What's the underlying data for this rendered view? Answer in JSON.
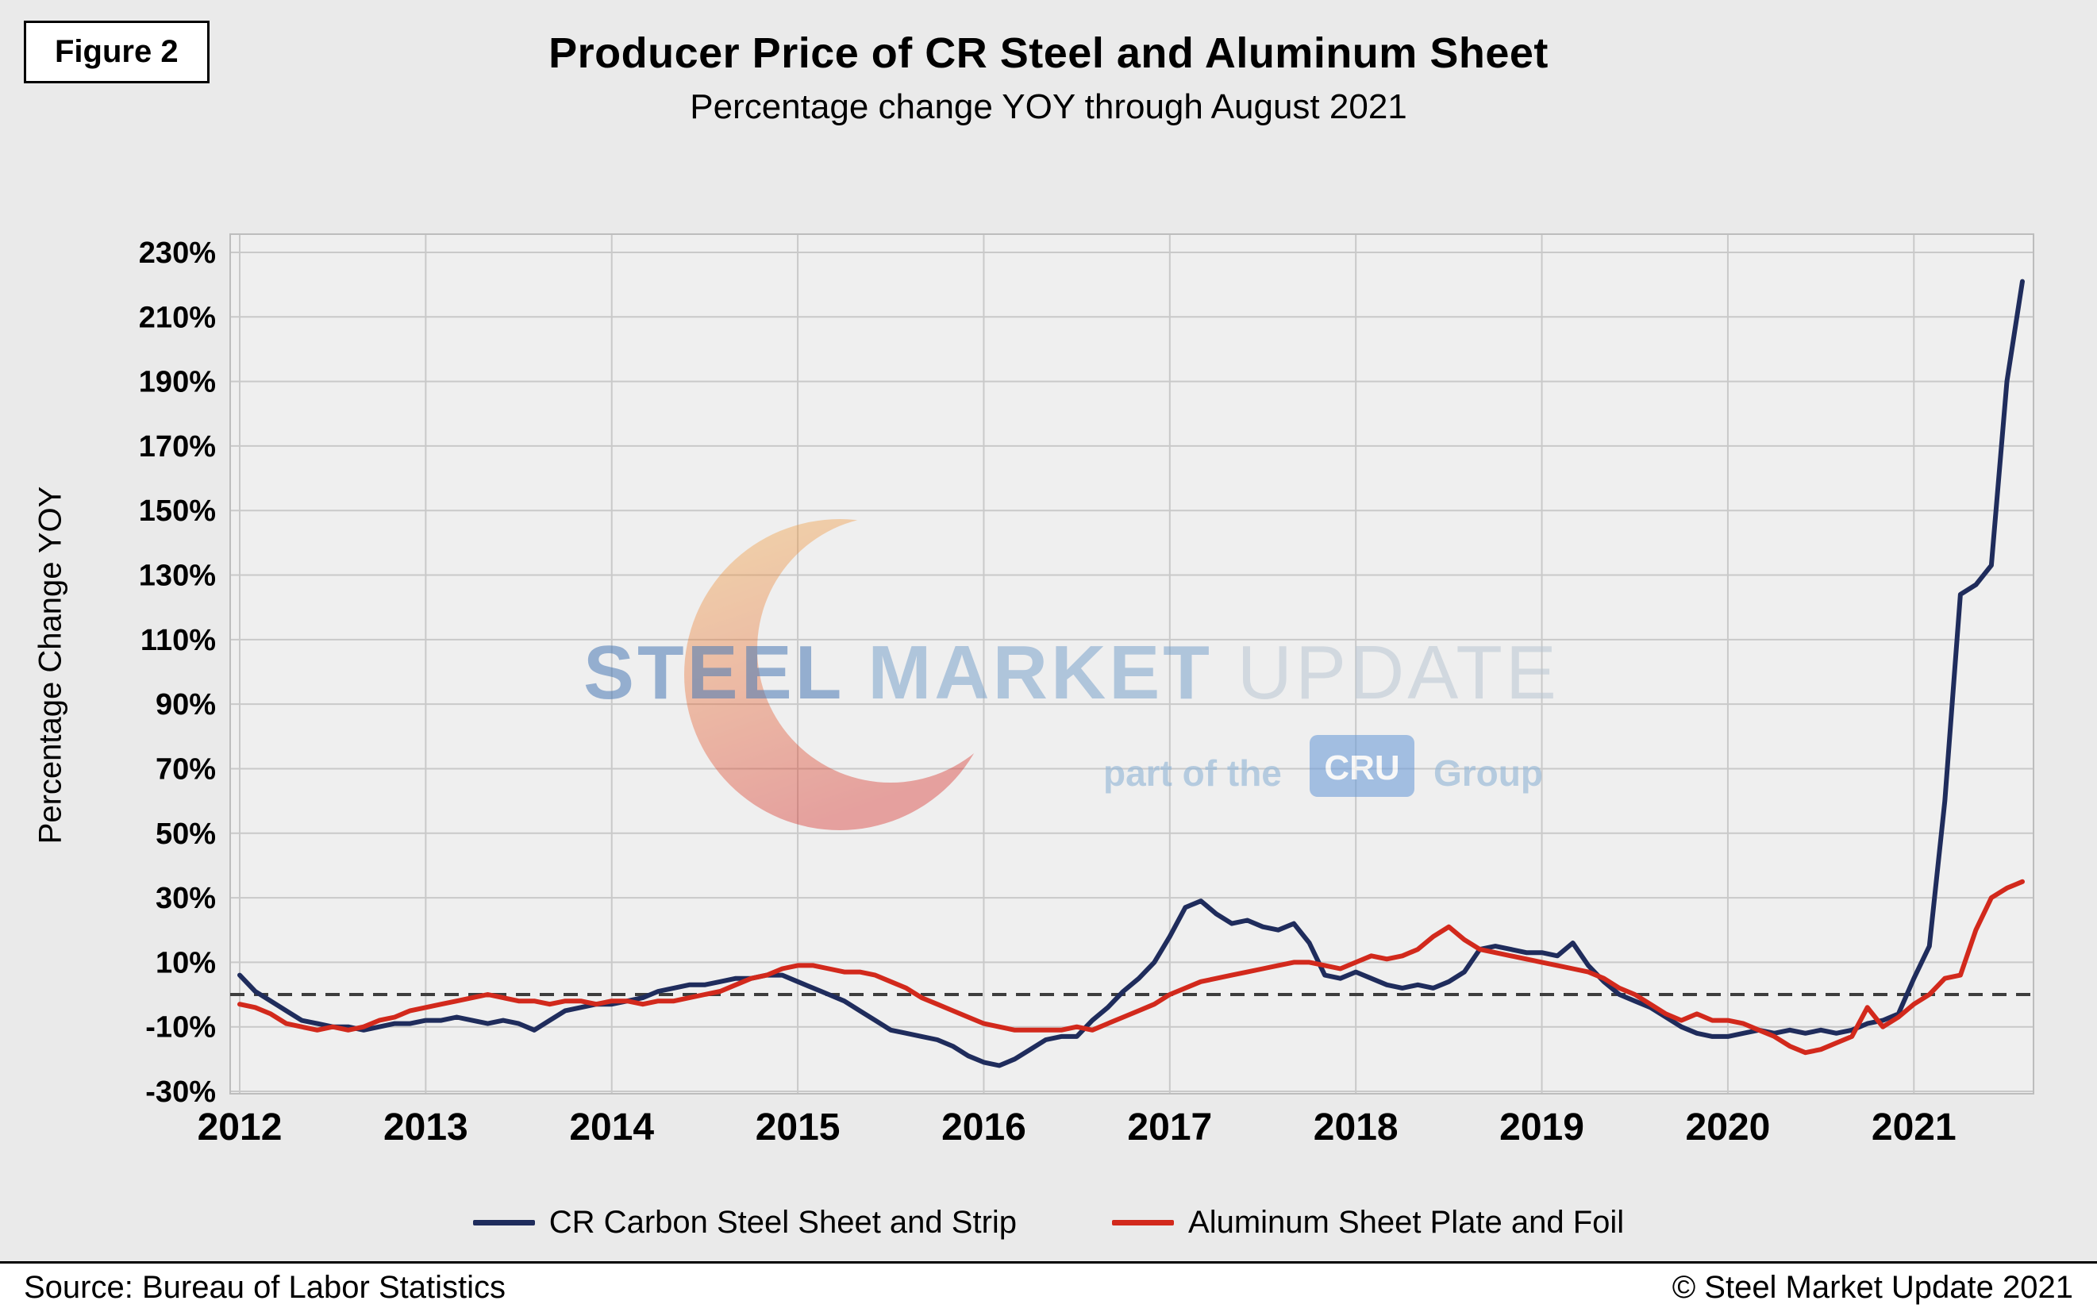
{
  "figure_label": "Figure 2",
  "title": "Producer Price of CR Steel and Aluminum Sheet",
  "subtitle": "Percentage change YOY through August 2021",
  "y_axis_title": "Percentage Change YOY",
  "watermark": {
    "word1": "STEEL",
    "word2": "MARKET",
    "word3": "UPDATE",
    "part_of_the": "part of the",
    "cru": "CRU",
    "group": "Group"
  },
  "footer": {
    "source": "Source: Bureau of Labor Statistics",
    "copyright": "© Steel Market Update 2021"
  },
  "colors": {
    "steel_line": "#1f2c5c",
    "aluminum_line": "#d2291c",
    "zero_line": "#3d3d3d",
    "grid_line": "#c9c9c9",
    "plot_background": "#efefef",
    "page_background": "#eaeaea"
  },
  "chart_data": {
    "type": "line",
    "title": "Producer Price of CR Steel and Aluminum Sheet",
    "subtitle": "Percentage change YOY through August 2021",
    "xlabel": "",
    "ylabel": "Percentage Change YOY",
    "x_frequency": "monthly",
    "x_start": "2012-01",
    "x_end": "2021-08",
    "x_tick_labels": [
      "2012",
      "2013",
      "2014",
      "2015",
      "2016",
      "2017",
      "2018",
      "2019",
      "2020",
      "2021"
    ],
    "ylim": [
      -30,
      230
    ],
    "ytick_step": 20,
    "ytick_format": "percent",
    "grid": true,
    "zero_reference_line": {
      "value": 0,
      "style": "dashed"
    },
    "legend_position": "bottom",
    "series": [
      {
        "name": "CR Carbon Steel Sheet and Strip",
        "color": "#1f2c5c",
        "values": [
          6,
          1,
          -2,
          -5,
          -8,
          -9,
          -10,
          -10,
          -11,
          -10,
          -9,
          -9,
          -8,
          -8,
          -7,
          -8,
          -9,
          -8,
          -9,
          -11,
          -8,
          -5,
          -4,
          -3,
          -3,
          -2,
          -1,
          1,
          2,
          3,
          3,
          4,
          5,
          5,
          6,
          6,
          4,
          2,
          0,
          -2,
          -5,
          -8,
          -11,
          -12,
          -13,
          -14,
          -16,
          -19,
          -21,
          -22,
          -20,
          -17,
          -14,
          -13,
          -13,
          -8,
          -4,
          1,
          5,
          10,
          18,
          27,
          29,
          25,
          22,
          23,
          21,
          20,
          22,
          16,
          6,
          5,
          7,
          5,
          3,
          2,
          3,
          2,
          4,
          7,
          14,
          15,
          14,
          13,
          13,
          12,
          16,
          9,
          4,
          0,
          -2,
          -4,
          -7,
          -10,
          -12,
          -13,
          -13,
          -12,
          -11,
          -12,
          -11,
          -12,
          -11,
          -12,
          -11,
          -9,
          -8,
          -6,
          5,
          15,
          60,
          124,
          127,
          133,
          190,
          221
        ]
      },
      {
        "name": "Aluminum Sheet Plate and Foil",
        "color": "#d2291c",
        "values": [
          -3,
          -4,
          -6,
          -9,
          -10,
          -11,
          -10,
          -11,
          -10,
          -8,
          -7,
          -5,
          -4,
          -3,
          -2,
          -1,
          0,
          -1,
          -2,
          -2,
          -3,
          -2,
          -2,
          -3,
          -2,
          -2,
          -3,
          -2,
          -2,
          -1,
          0,
          1,
          3,
          5,
          6,
          8,
          9,
          9,
          8,
          7,
          7,
          6,
          4,
          2,
          -1,
          -3,
          -5,
          -7,
          -9,
          -10,
          -11,
          -11,
          -11,
          -11,
          -10,
          -11,
          -9,
          -7,
          -5,
          -3,
          0,
          2,
          4,
          5,
          6,
          7,
          8,
          9,
          10,
          10,
          9,
          8,
          10,
          12,
          11,
          12,
          14,
          18,
          21,
          17,
          14,
          13,
          12,
          11,
          10,
          9,
          8,
          7,
          5,
          2,
          0,
          -3,
          -6,
          -8,
          -6,
          -8,
          -8,
          -9,
          -11,
          -13,
          -16,
          -18,
          -17,
          -15,
          -13,
          -4,
          -10,
          -7,
          -3,
          0,
          5,
          6,
          20,
          30,
          33,
          35
        ]
      }
    ]
  }
}
